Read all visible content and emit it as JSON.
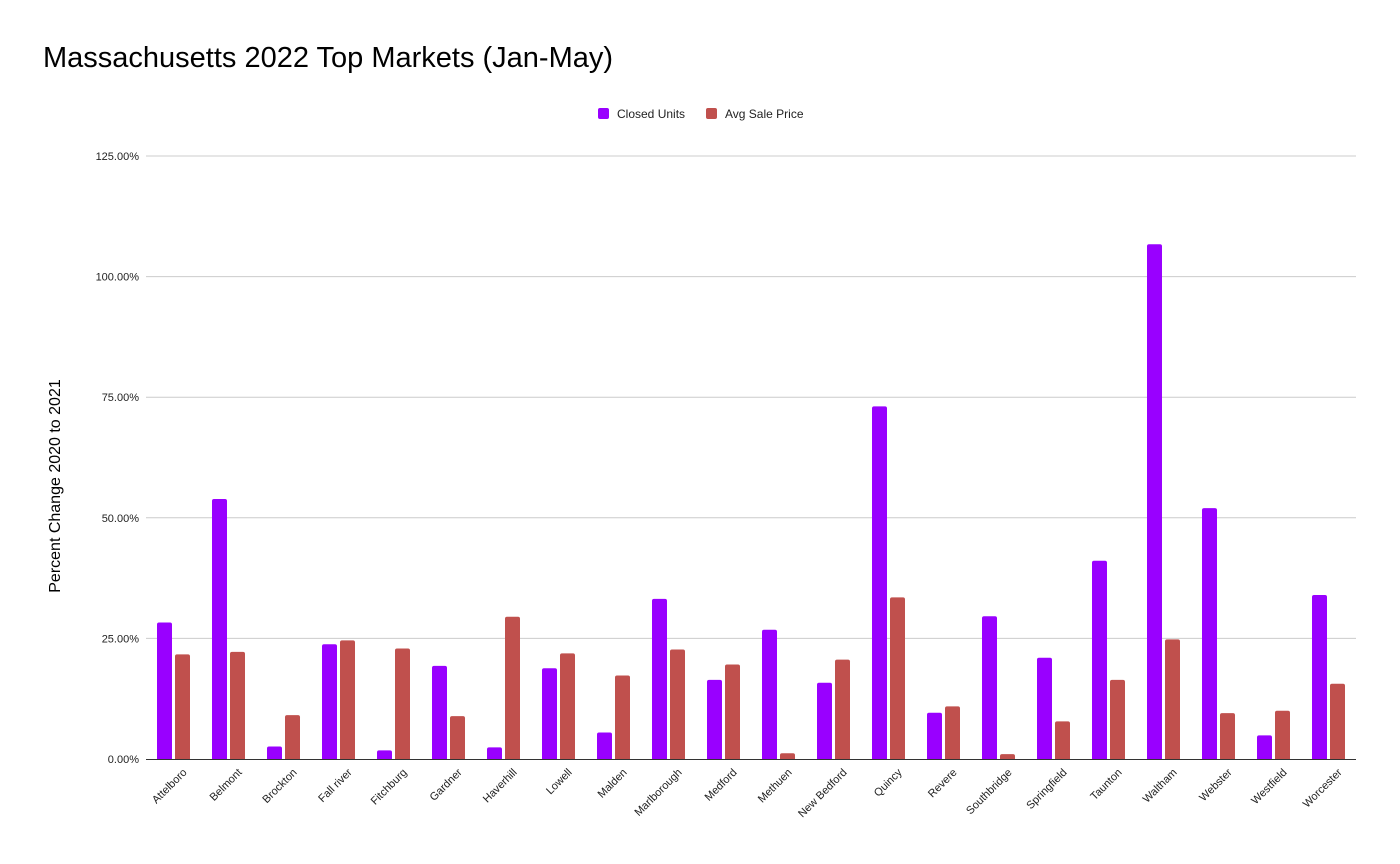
{
  "chart_data": {
    "type": "bar",
    "title": "Massachusetts 2022 Top Markets (Jan-May)",
    "xlabel": "",
    "ylabel": "Percent Change 2020 to 2021",
    "ylim": [
      0,
      125
    ],
    "yticks": [
      "0.00%",
      "25.00%",
      "50.00%",
      "75.00%",
      "100.00%",
      "125.00%"
    ],
    "grid": true,
    "legend_position": "top",
    "categories": [
      "Attelboro",
      "Belmont",
      "Brockton",
      "Fall river",
      "Fitchburg",
      "Gardner",
      "Haverhill",
      "Lowell",
      "Malden",
      "Marlborough",
      "Medford",
      "Methuen",
      "New Bedford",
      "Quincy",
      "Revere",
      "Southbridge",
      "Springfield",
      "Taunton",
      "Waltham",
      "Webster",
      "Westfield",
      "Worcester"
    ],
    "series": [
      {
        "name": "Closed Units",
        "color": "#9900ff",
        "values": [
          28.3,
          53.9,
          2.6,
          23.8,
          1.8,
          19.3,
          2.4,
          18.8,
          5.5,
          33.2,
          16.4,
          26.8,
          15.8,
          73.1,
          9.6,
          29.6,
          21.0,
          41.1,
          106.7,
          52.0,
          4.9,
          34.0
        ]
      },
      {
        "name": "Avg Sale Price",
        "color": "#c0504d",
        "values": [
          21.7,
          22.2,
          9.1,
          24.6,
          22.9,
          8.9,
          29.5,
          21.9,
          17.3,
          22.7,
          19.6,
          1.2,
          20.6,
          33.5,
          10.9,
          1.0,
          7.8,
          16.4,
          24.8,
          9.5,
          10.0,
          15.6
        ]
      }
    ]
  }
}
